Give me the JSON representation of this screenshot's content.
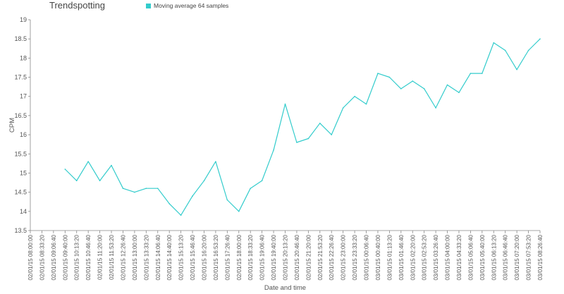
{
  "chart_data": {
    "type": "line",
    "title": "Trendspotting",
    "xlabel": "Date and time",
    "ylabel": "CPM",
    "ylim": [
      13.5,
      19
    ],
    "y_ticks": [
      "13.5",
      "14",
      "14.5",
      "15",
      "15.5",
      "16",
      "16.5",
      "17",
      "17.5",
      "18",
      "18.5",
      "19"
    ],
    "x_tick_labels": [
      "02/01/15 08:00:00",
      "02/01/15 08:33:20",
      "02/01/15 09:06:40",
      "02/01/15 09:40:00",
      "02/01/15 10:13:20",
      "02/01/15 10:46:40",
      "02/01/15 11:20:00",
      "02/01/15 11:53:20",
      "02/01/15 12:26:40",
      "02/01/15 13:00:00",
      "02/01/15 13:33:20",
      "02/01/15 14:06:40",
      "02/01/15 14:40:00",
      "02/01/15 15:13:20",
      "02/01/15 15:46:40",
      "02/01/15 16:20:00",
      "02/01/15 16:53:20",
      "02/01/15 17:26:40",
      "02/01/15 18:00:00",
      "02/01/15 18:33:20",
      "02/01/15 19:06:40",
      "02/01/15 19:40:00",
      "02/01/15 20:13:20",
      "02/01/15 20:46:40",
      "02/01/15 21:20:00",
      "02/01/15 21:53:20",
      "02/01/15 22:26:40",
      "02/01/15 23:00:00",
      "02/01/15 23:33:20",
      "03/01/15 00:06:40",
      "03/01/15 00:40:00",
      "03/01/15 01:13:20",
      "03/01/15 01:46:40",
      "03/01/15 02:20:00",
      "03/01/15 02:53:20",
      "03/01/15 03:26:40",
      "03/01/15 04:00:00",
      "03/01/15 04:33:20",
      "03/01/15 05:06:40",
      "03/01/15 05:40:00",
      "03/01/15 06:13:20",
      "03/01/15 06:46:40",
      "03/01/15 07:20:00",
      "03/01/15 07:53:20",
      "03/01/15 08:26:40"
    ],
    "series": [
      {
        "name": "Moving average 64 samples",
        "color": "#33cccc",
        "x": [
          "02/01/15 09:40:00",
          "02/01/15 10:13:20",
          "02/01/15 10:46:40",
          "02/01/15 11:20:00",
          "02/01/15 11:53:20",
          "02/01/15 12:26:40",
          "02/01/15 13:00:00",
          "02/01/15 13:33:20",
          "02/01/15 14:06:40",
          "02/01/15 14:40:00",
          "02/01/15 15:13:20",
          "02/01/15 15:46:40",
          "02/01/15 16:20:00",
          "02/01/15 16:53:20",
          "02/01/15 17:26:40",
          "02/01/15 18:00:00",
          "02/01/15 18:33:20",
          "02/01/15 19:06:40",
          "02/01/15 19:40:00",
          "02/01/15 20:13:20",
          "02/01/15 20:46:40",
          "02/01/15 21:20:00",
          "02/01/15 21:53:20",
          "02/01/15 22:26:40",
          "02/01/15 23:00:00",
          "02/01/15 23:33:20",
          "03/01/15 00:06:40",
          "03/01/15 00:40:00",
          "03/01/15 01:13:20",
          "03/01/15 01:46:40",
          "03/01/15 02:20:00",
          "03/01/15 02:53:20",
          "03/01/15 03:26:40",
          "03/01/15 04:00:00",
          "03/01/15 04:33:20",
          "03/01/15 05:06:40",
          "03/01/15 05:40:00",
          "03/01/15 06:13:20",
          "03/01/15 06:46:40",
          "03/01/15 07:20:00",
          "03/01/15 07:53:20",
          "03/01/15 08:26:40"
        ],
        "values": [
          15.1,
          14.8,
          15.3,
          14.8,
          15.2,
          14.6,
          14.5,
          14.6,
          14.6,
          14.2,
          13.9,
          14.4,
          14.8,
          15.3,
          14.3,
          14.0,
          14.6,
          14.8,
          15.6,
          16.8,
          15.8,
          15.9,
          16.3,
          16.0,
          16.7,
          17.0,
          16.8,
          17.6,
          17.5,
          17.2,
          17.4,
          17.2,
          16.7,
          17.3,
          17.1,
          17.6,
          17.6,
          18.4,
          18.2,
          17.7,
          18.2,
          18.5
        ]
      }
    ]
  }
}
